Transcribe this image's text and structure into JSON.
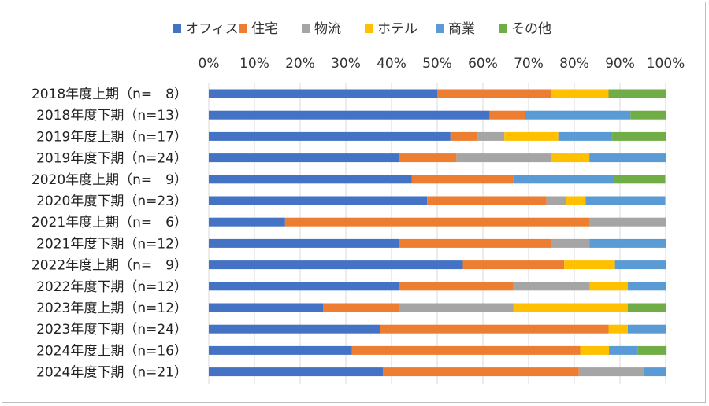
{
  "chart_data": {
    "type": "bar",
    "orientation": "horizontal",
    "stacked": "percent",
    "title": "",
    "xlabel": "",
    "ylabel": "",
    "xlim": [
      0,
      1
    ],
    "x_ticks": [
      "0%",
      "10%",
      "20%",
      "30%",
      "40%",
      "50%",
      "60%",
      "70%",
      "80%",
      "90%",
      "100%"
    ],
    "grid": true,
    "legend_position": "top",
    "categories": [
      "2018年度上期（n=　8）",
      "2018年度下期（n=13）",
      "2019年度上期（n=17）",
      "2019年度下期（n=24）",
      "2020年度上期（n=　9）",
      "2020年度下期（n=23）",
      "2021年度上期（n=　6）",
      "2021年度下期（n=12）",
      "2022年度上期（n=　9）",
      "2022年度下期（n=12）",
      "2023年度上期（n=12）",
      "2023年度下期（n=24）",
      "2024年度上期（n=16）",
      "2024年度下期（n=21）"
    ],
    "series": [
      {
        "name": "オフィス",
        "color": "#4472c4",
        "values": [
          0.5,
          0.615,
          0.529,
          0.417,
          0.444,
          0.478,
          0.167,
          0.417,
          0.556,
          0.417,
          0.25,
          0.375,
          0.313,
          0.381
        ]
      },
      {
        "name": "住宅",
        "color": "#ed7d31",
        "values": [
          0.25,
          0.077,
          0.059,
          0.125,
          0.222,
          0.261,
          0.667,
          0.333,
          0.222,
          0.25,
          0.167,
          0.5,
          0.5,
          0.429
        ]
      },
      {
        "name": "物流",
        "color": "#a5a5a5",
        "values": [
          0,
          0,
          0.059,
          0.208,
          0,
          0.043,
          0.167,
          0.083,
          0,
          0.167,
          0.25,
          0,
          0,
          0.143
        ]
      },
      {
        "name": "ホテル",
        "color": "#ffc000",
        "values": [
          0.125,
          0,
          0.118,
          0.083,
          0,
          0.043,
          0,
          0,
          0.111,
          0.083,
          0.25,
          0.042,
          0.063,
          0
        ]
      },
      {
        "name": "商業",
        "color": "#5b9bd5",
        "values": [
          0,
          0.231,
          0.118,
          0.167,
          0.222,
          0.174,
          0,
          0.167,
          0.111,
          0.083,
          0,
          0.083,
          0.063,
          0.048
        ]
      },
      {
        "name": "その他",
        "color": "#70ad47",
        "values": [
          0.125,
          0.077,
          0.118,
          0,
          0.111,
          0,
          0,
          0,
          0,
          0,
          0.083,
          0,
          0.063,
          0
        ]
      }
    ]
  }
}
